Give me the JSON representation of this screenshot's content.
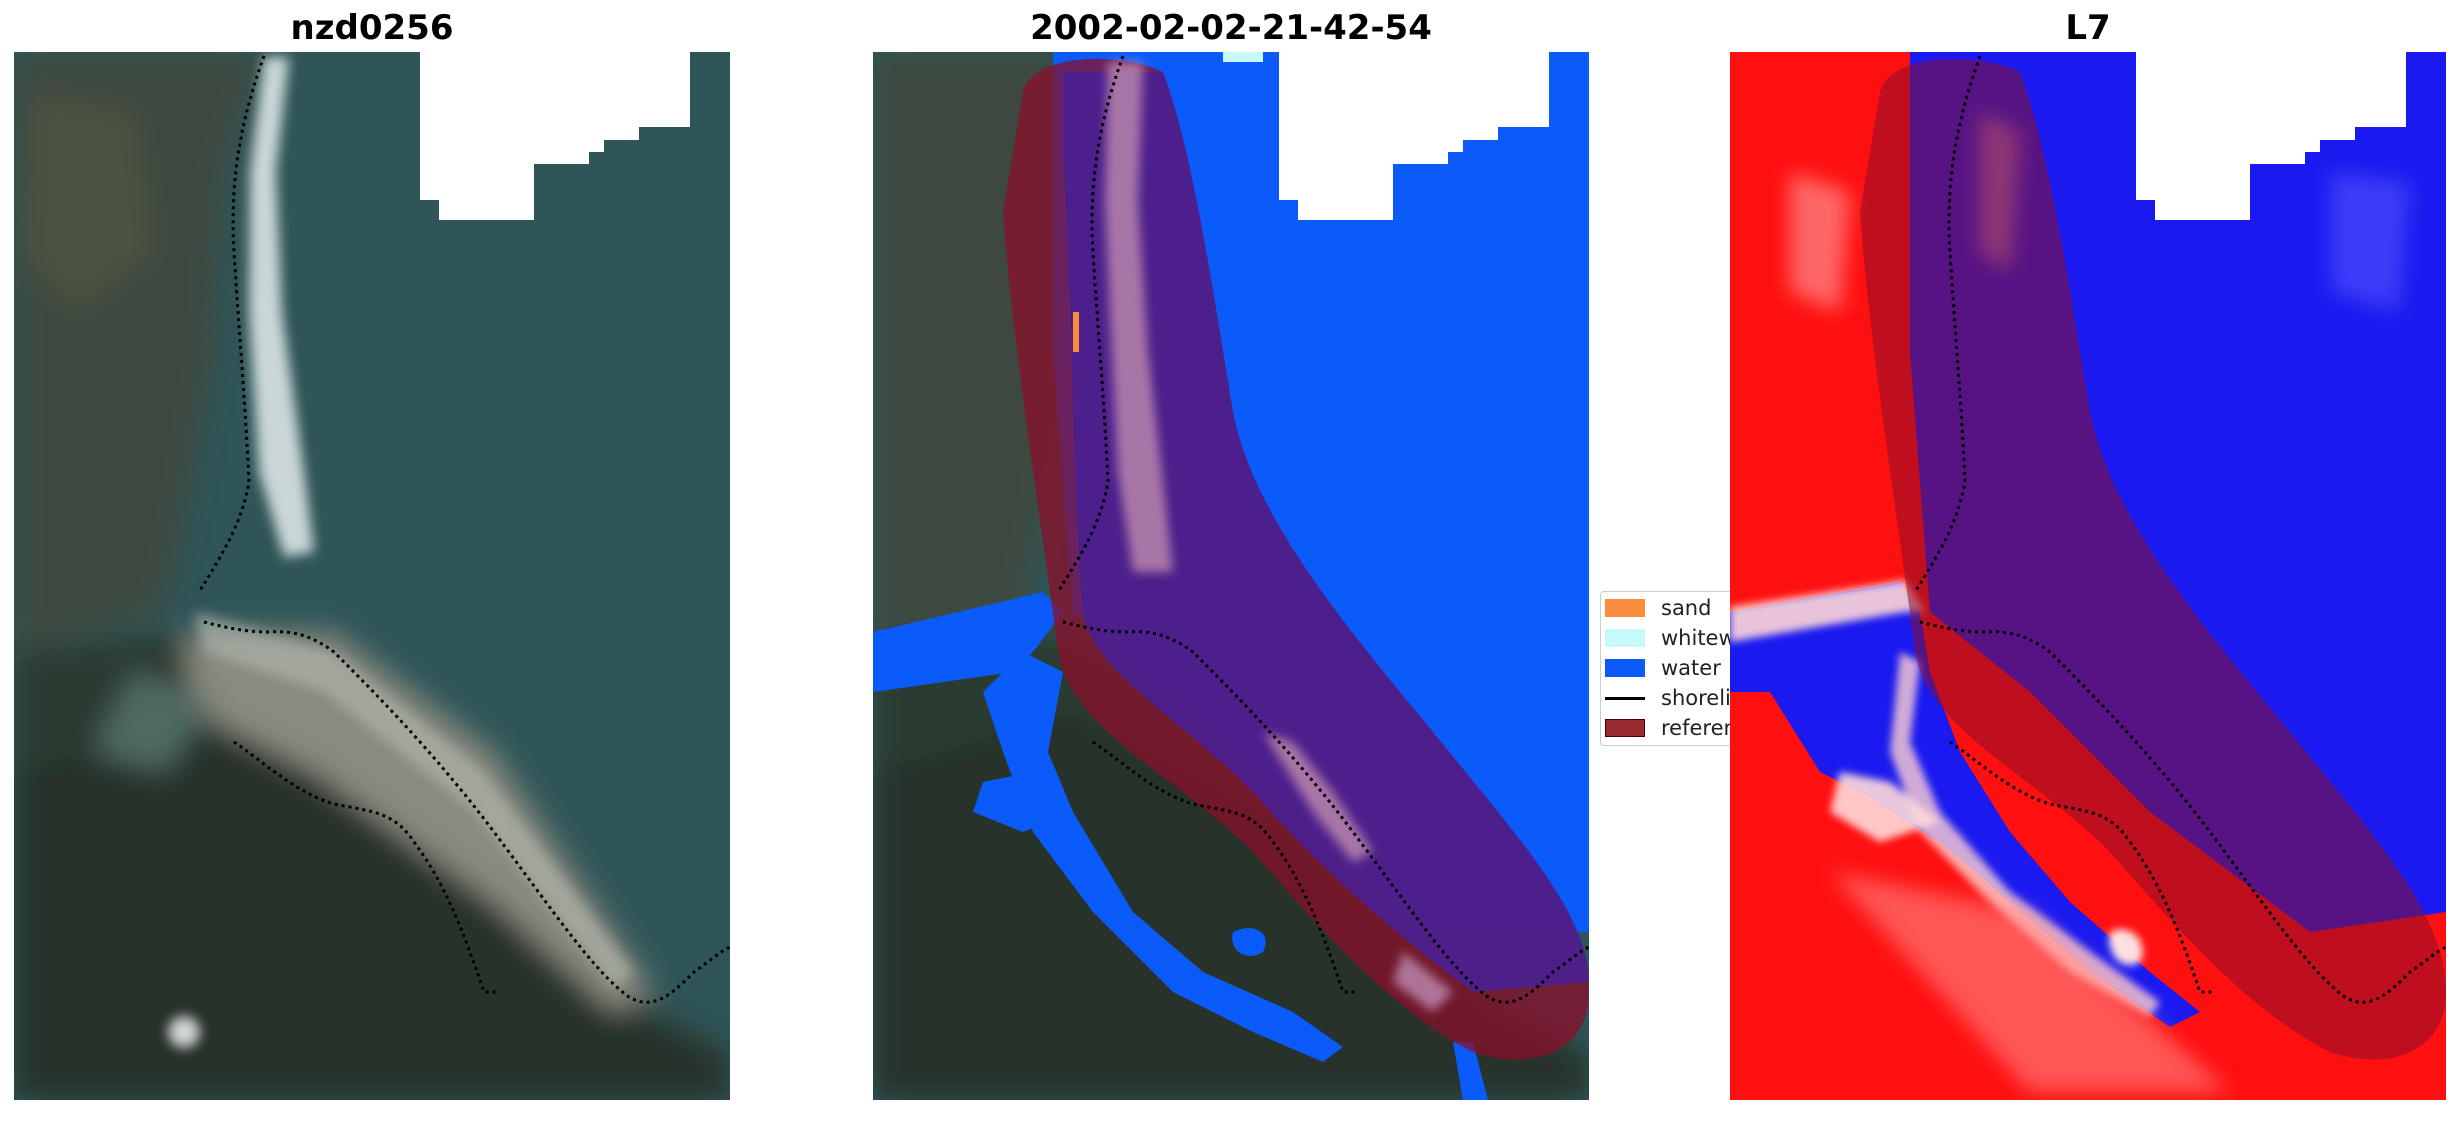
{
  "panels": [
    {
      "title": "nzd0256"
    },
    {
      "title": "2002-02-02-21-42-54"
    },
    {
      "title": "L7"
    }
  ],
  "legend": {
    "items": [
      {
        "label": "sand",
        "color": "#f98c3a",
        "kind": "patch"
      },
      {
        "label": "whitewater",
        "color": "#c6fafa",
        "kind": "patch"
      },
      {
        "label": "water",
        "color": "#0a5bfa",
        "kind": "patch"
      },
      {
        "label": "shoreline",
        "color": "#000000",
        "kind": "line"
      },
      {
        "label": "reference",
        "color": "#9a2b31",
        "kind": "patch"
      }
    ]
  },
  "colors": {
    "water_class": "#0a5bfa",
    "reference_buffer": "#8b0f2b",
    "land_index": "#ff1010",
    "water_index": "#1a1af0"
  }
}
